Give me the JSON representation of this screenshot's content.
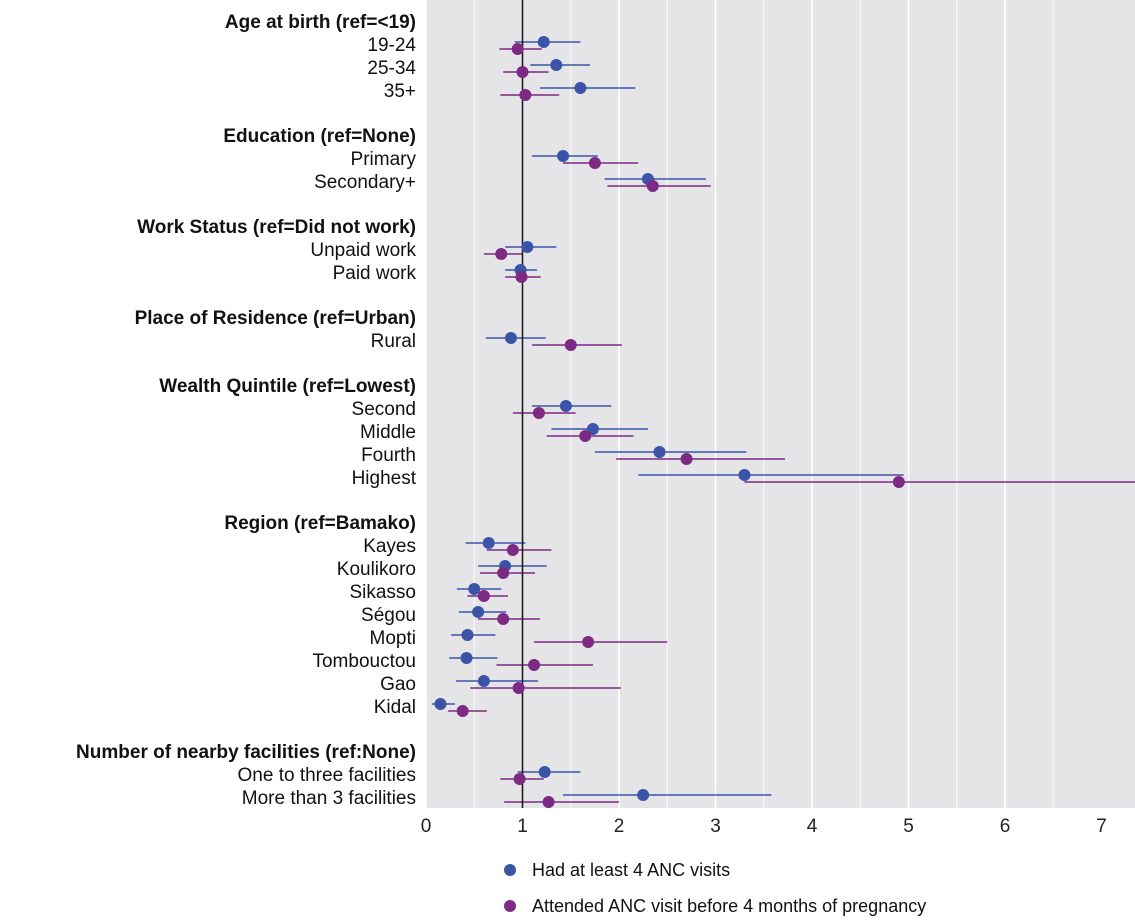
{
  "chart_data": {
    "type": "scatter",
    "subtype": "forest-plot",
    "reference_line": 1,
    "xlim": [
      0,
      7.4
    ],
    "x_ticks": [
      "0",
      "1",
      "2",
      "3",
      "4",
      "5",
      "6",
      "7"
    ],
    "grid": true,
    "legend_position": "bottom",
    "series": [
      {
        "name": "Had at least 4 ANC visits",
        "color": "#3b54a8"
      },
      {
        "name": "Attended ANC visit before 4 months of pregnancy",
        "color": "#7d2a84"
      }
    ],
    "groups": [
      {
        "label": "Age at birth (ref=<19)",
        "rows": [
          {
            "label": "19-24",
            "s1": [
              1.22,
              0.92,
              1.6
            ],
            "s2": [
              0.95,
              0.76,
              1.2
            ]
          },
          {
            "label": "25-34",
            "s1": [
              1.35,
              1.08,
              1.7
            ],
            "s2": [
              1.0,
              0.8,
              1.27
            ]
          },
          {
            "label": "35+",
            "s1": [
              1.6,
              1.18,
              2.17
            ],
            "s2": [
              1.03,
              0.77,
              1.38
            ]
          }
        ]
      },
      {
        "label": "Education (ref=None)",
        "rows": [
          {
            "label": "Primary",
            "s1": [
              1.42,
              1.1,
              1.78
            ],
            "s2": [
              1.75,
              1.42,
              2.2
            ]
          },
          {
            "label": "Secondary+",
            "s1": [
              2.3,
              1.85,
              2.9
            ],
            "s2": [
              2.35,
              1.88,
              2.95
            ]
          }
        ]
      },
      {
        "label": "Work Status (ref=Did not work)",
        "rows": [
          {
            "label": "Unpaid work",
            "s1": [
              1.05,
              0.82,
              1.35
            ],
            "s2": [
              0.78,
              0.6,
              1.0
            ]
          },
          {
            "label": "Paid work",
            "s1": [
              0.98,
              0.82,
              1.15
            ],
            "s2": [
              0.99,
              0.82,
              1.19
            ]
          }
        ]
      },
      {
        "label": "Place of Residence (ref=Urban)",
        "rows": [
          {
            "label": "Rural",
            "s1": [
              0.88,
              0.62,
              1.24
            ],
            "s2": [
              1.5,
              1.1,
              2.03
            ]
          }
        ]
      },
      {
        "label": "Wealth Quintile (ref=Lowest)",
        "rows": [
          {
            "label": "Second",
            "s1": [
              1.45,
              1.1,
              1.92
            ],
            "s2": [
              1.17,
              0.9,
              1.55
            ]
          },
          {
            "label": "Middle",
            "s1": [
              1.73,
              1.3,
              2.3
            ],
            "s2": [
              1.65,
              1.25,
              2.15
            ]
          },
          {
            "label": "Fourth",
            "s1": [
              2.42,
              1.75,
              3.32
            ],
            "s2": [
              2.7,
              1.97,
              3.72
            ]
          },
          {
            "label": "Highest",
            "s1": [
              3.3,
              2.2,
              4.95
            ],
            "s2": [
              4.9,
              3.3,
              7.4
            ]
          }
        ]
      },
      {
        "label": "Region (ref=Bamako)",
        "rows": [
          {
            "label": "Kayes",
            "s1": [
              0.65,
              0.41,
              1.03
            ],
            "s2": [
              0.9,
              0.63,
              1.3
            ]
          },
          {
            "label": "Koulikoro",
            "s1": [
              0.82,
              0.54,
              1.25
            ],
            "s2": [
              0.8,
              0.56,
              1.13
            ]
          },
          {
            "label": "Sikasso",
            "s1": [
              0.5,
              0.32,
              0.78
            ],
            "s2": [
              0.6,
              0.43,
              0.85
            ]
          },
          {
            "label": "Ségou",
            "s1": [
              0.54,
              0.34,
              0.83
            ],
            "s2": [
              0.8,
              0.54,
              1.18
            ]
          },
          {
            "label": "Mopti",
            "s1": [
              0.43,
              0.26,
              0.72
            ],
            "s2": [
              1.68,
              1.12,
              2.5
            ]
          },
          {
            "label": "Tombouctou",
            "s1": [
              0.42,
              0.24,
              0.74
            ],
            "s2": [
              1.12,
              0.73,
              1.73
            ]
          },
          {
            "label": "Gao",
            "s1": [
              0.6,
              0.31,
              1.16
            ],
            "s2": [
              0.96,
              0.46,
              2.02
            ]
          },
          {
            "label": "Kidal",
            "s1": [
              0.15,
              0.06,
              0.3
            ],
            "s2": [
              0.38,
              0.23,
              0.63
            ]
          }
        ]
      },
      {
        "label": "Number of nearby facilities (ref:None)",
        "rows": [
          {
            "label": "One to three facilities",
            "s1": [
              1.23,
              0.95,
              1.6
            ],
            "s2": [
              0.97,
              0.77,
              1.22
            ]
          },
          {
            "label": "More than 3 facilities",
            "s1": [
              2.25,
              1.42,
              3.58
            ],
            "s2": [
              1.27,
              0.81,
              2.0
            ]
          }
        ]
      }
    ]
  }
}
